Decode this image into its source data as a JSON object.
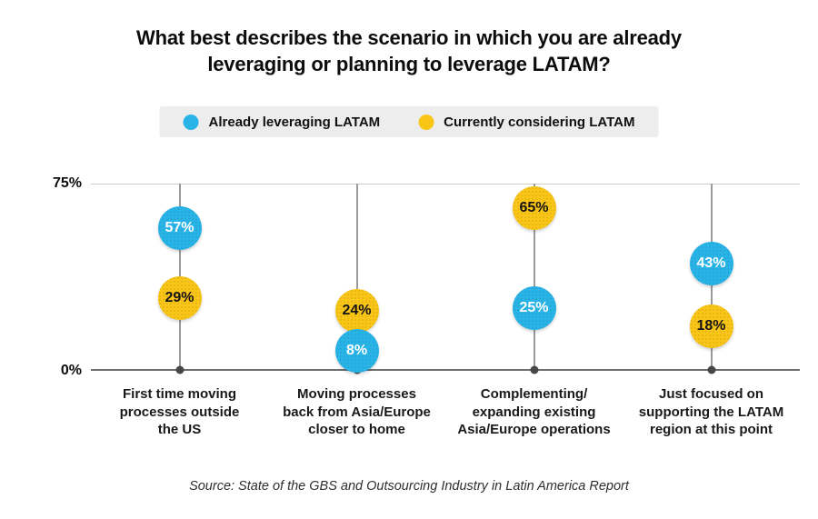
{
  "header": {
    "title": "What best describes the scenario in which you are already leveraging or planning to leverage LATAM?",
    "title_lines": [
      "What best describes the scenario in which you are already",
      "leveraging or planning to leverage LATAM?"
    ]
  },
  "legend": {
    "items": [
      {
        "label": "Already leveraging LATAM",
        "color": "#29B4E8"
      },
      {
        "label": "Currently considering LATAM",
        "color": "#F9C516"
      }
    ],
    "background": "#EDEDED"
  },
  "source": "Source: State of the GBS and Outsourcing Industry in Latin America Report",
  "chart_data": {
    "type": "scatter",
    "variant": "lollipop-dot-plot",
    "title": "What best describes the scenario in which you are already leveraging or planning to leverage LATAM?",
    "categories": [
      "First time moving processes outside the US",
      "Moving processes back from Asia/Europe closer to home",
      "Complementing/expanding existing Asia/Europe operations",
      "Just focused on supporting the LATAM region at this point"
    ],
    "category_lines": [
      [
        "First time moving",
        "processes outside",
        "the US"
      ],
      [
        "Moving processes",
        "back from Asia/Europe",
        "closer to home"
      ],
      [
        "Complementing/",
        "expanding existing",
        "Asia/Europe operations"
      ],
      [
        "Just focused on",
        "supporting the LATAM",
        "region at this point"
      ]
    ],
    "series": [
      {
        "name": "Already leveraging LATAM",
        "color": "#29B4E8",
        "label_color": "#FFFFFF",
        "values": [
          57,
          8,
          25,
          43
        ]
      },
      {
        "name": "Currently considering LATAM",
        "color": "#F9C516",
        "label_color": "#141414",
        "values": [
          29,
          24,
          65,
          18
        ]
      }
    ],
    "unit": "%",
    "ylim": [
      0,
      75
    ],
    "yticks": [
      {
        "label": "0%",
        "value": 0
      },
      {
        "label": "75%",
        "value": 75
      }
    ],
    "grid": {
      "top_line": true,
      "baseline": true,
      "category_stems": true,
      "baseline_dots": true
    },
    "legend_position": "top-center",
    "xlabel": "",
    "ylabel": ""
  }
}
